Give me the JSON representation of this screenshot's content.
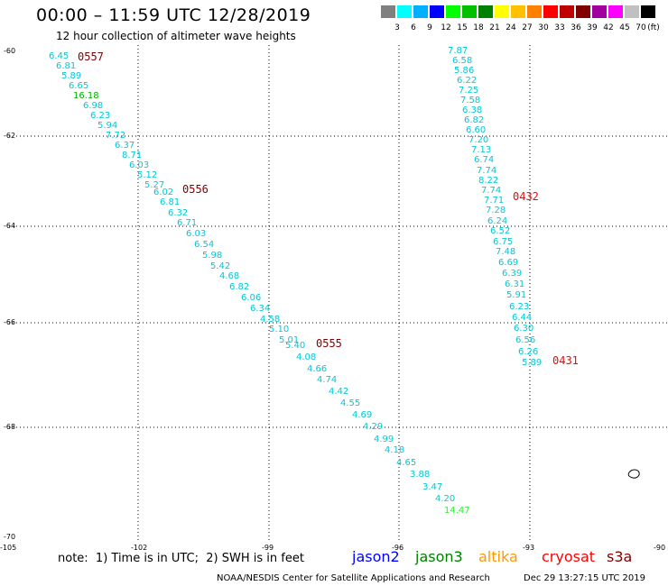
{
  "title": "00:00 – 11:59 UTC 12/28/2019",
  "subtitle": "12 hour collection of altimeter wave heights",
  "colorbar": {
    "unit_label": "(ft)",
    "colors": [
      "#808080",
      "#00ffff",
      "#00b0ff",
      "#0000ff",
      "#00ff00",
      "#00c000",
      "#008000",
      "#ffff00",
      "#ffc000",
      "#ff8000",
      "#ff0000",
      "#c00000",
      "#800000",
      "#a000a0",
      "#ff00ff",
      "#c0c0c0",
      "#000000"
    ],
    "labels": [
      "3",
      "6",
      "9",
      "12",
      "15",
      "18",
      "21",
      "24",
      "27",
      "30",
      "33",
      "36",
      "39",
      "42",
      "45",
      "70"
    ]
  },
  "axes": {
    "y_ticks": [
      "-60",
      "-62",
      "-64",
      "-66",
      "-68",
      "-70"
    ],
    "x_ticks": [
      "-105",
      "-102",
      "-99",
      "-96",
      "-93",
      "-90"
    ]
  },
  "pass_labels": [
    {
      "text": "0557",
      "color": "#800000"
    },
    {
      "text": "0556",
      "color": "#800000"
    },
    {
      "text": "0555",
      "color": "#800000"
    },
    {
      "text": "0432",
      "color": "#ff0000"
    },
    {
      "text": "0431",
      "color": "#ff0000"
    }
  ],
  "track_a": [
    {
      "v": "6.45",
      "c": "#00c8d8"
    },
    {
      "v": "6.81",
      "c": "#00c8d8"
    },
    {
      "v": "5.89",
      "c": "#00c8d8"
    },
    {
      "v": "6.65",
      "c": "#00c8d8"
    },
    {
      "v": "16.18",
      "c": "#00b000"
    },
    {
      "v": "6.98",
      "c": "#00c8d8"
    },
    {
      "v": "6.23",
      "c": "#00c8d8"
    },
    {
      "v": "5.94",
      "c": "#00c8d8"
    },
    {
      "v": "7.72",
      "c": "#00c8d8"
    },
    {
      "v": "6.37",
      "c": "#00c8d8"
    },
    {
      "v": "8.71",
      "c": "#00c8d8"
    },
    {
      "v": "6.03",
      "c": "#00c8d8"
    },
    {
      "v": "5.12",
      "c": "#00c8d8"
    },
    {
      "v": "5.27",
      "c": "#00c8d8"
    },
    {
      "v": "6.02",
      "c": "#00c8d8"
    },
    {
      "v": "6.81",
      "c": "#00c8d8"
    },
    {
      "v": "6.32",
      "c": "#00c8d8"
    },
    {
      "v": "6.71",
      "c": "#00c8d8"
    },
    {
      "v": "6.03",
      "c": "#00c8d8"
    },
    {
      "v": "6.54",
      "c": "#00c8d8"
    },
    {
      "v": "5.98",
      "c": "#00c8d8"
    },
    {
      "v": "5.42",
      "c": "#00c8d8"
    },
    {
      "v": "4.68",
      "c": "#00c8d8"
    },
    {
      "v": "6.82",
      "c": "#00c8d8"
    },
    {
      "v": "6.06",
      "c": "#00c8d8"
    },
    {
      "v": "6.34",
      "c": "#00c8d8"
    },
    {
      "v": "4.58",
      "c": "#00c8d8"
    },
    {
      "v": "5.10",
      "c": "#00c8d8"
    },
    {
      "v": "5.01",
      "c": "#00c8d8"
    },
    {
      "v": "5.40",
      "c": "#00c8d8"
    },
    {
      "v": "4.08",
      "c": "#00c8d8"
    },
    {
      "v": "4.66",
      "c": "#00c8d8"
    },
    {
      "v": "4.74",
      "c": "#00c8d8"
    },
    {
      "v": "4.42",
      "c": "#00c8d8"
    },
    {
      "v": "4.55",
      "c": "#00c8d8"
    },
    {
      "v": "4.69",
      "c": "#00c8d8"
    },
    {
      "v": "4.29",
      "c": "#00c8d8"
    },
    {
      "v": "4.99",
      "c": "#00c8d8"
    },
    {
      "v": "4.18",
      "c": "#00c8d8"
    },
    {
      "v": "4.65",
      "c": "#00c8d8"
    },
    {
      "v": "3.88",
      "c": "#00c8d8"
    },
    {
      "v": "3.47",
      "c": "#00c8d8"
    },
    {
      "v": "4.20",
      "c": "#00c8d8"
    },
    {
      "v": "14.47",
      "c": "#33ee33"
    }
  ],
  "track_b": [
    {
      "v": "7.87",
      "c": "#00c8d8"
    },
    {
      "v": "6.58",
      "c": "#00c8d8"
    },
    {
      "v": "5.86",
      "c": "#00c8d8"
    },
    {
      "v": "6.22",
      "c": "#00c8d8"
    },
    {
      "v": "7.25",
      "c": "#00c8d8"
    },
    {
      "v": "7.58",
      "c": "#00c8d8"
    },
    {
      "v": "6.38",
      "c": "#00c8d8"
    },
    {
      "v": "6.82",
      "c": "#00c8d8"
    },
    {
      "v": "6.60",
      "c": "#00c8d8"
    },
    {
      "v": "7.20",
      "c": "#00c8d8"
    },
    {
      "v": "7.13",
      "c": "#00c8d8"
    },
    {
      "v": "6.74",
      "c": "#00c8d8"
    },
    {
      "v": "7.74",
      "c": "#00c8d8"
    },
    {
      "v": "8.22",
      "c": "#00c8d8"
    },
    {
      "v": "7.74",
      "c": "#00c8d8"
    },
    {
      "v": "7.71",
      "c": "#00c8d8"
    },
    {
      "v": "7.28",
      "c": "#00c8d8"
    },
    {
      "v": "6.24",
      "c": "#00c8d8"
    },
    {
      "v": "6.52",
      "c": "#00c8d8"
    },
    {
      "v": "6.75",
      "c": "#00c8d8"
    },
    {
      "v": "7.48",
      "c": "#00c8d8"
    },
    {
      "v": "6.69",
      "c": "#00c8d8"
    },
    {
      "v": "6.39",
      "c": "#00c8d8"
    },
    {
      "v": "6.31",
      "c": "#00c8d8"
    },
    {
      "v": "5.91",
      "c": "#00c8d8"
    },
    {
      "v": "6.23",
      "c": "#00c8d8"
    },
    {
      "v": "6.44",
      "c": "#00c8d8"
    },
    {
      "v": "6.30",
      "c": "#00c8d8"
    },
    {
      "v": "6.56",
      "c": "#00c8d8"
    },
    {
      "v": "6.26",
      "c": "#00c8d8"
    },
    {
      "v": "5.89",
      "c": "#00c8d8"
    }
  ],
  "note": "note:  1) Time is in UTC;  2) SWH is in feet",
  "satellites": [
    {
      "name": "jason2",
      "color": "#0000ff"
    },
    {
      "name": "jason3",
      "color": "#008000"
    },
    {
      "name": "altika",
      "color": "#ff9900"
    },
    {
      "name": "cryosat",
      "color": "#ff0000"
    },
    {
      "name": "s3a",
      "color": "#800000"
    }
  ],
  "footer": "NOAA/NESDIS Center for Satellite Applications and Research",
  "footer_date": "Dec 29 13:27:15 UTC 2019"
}
